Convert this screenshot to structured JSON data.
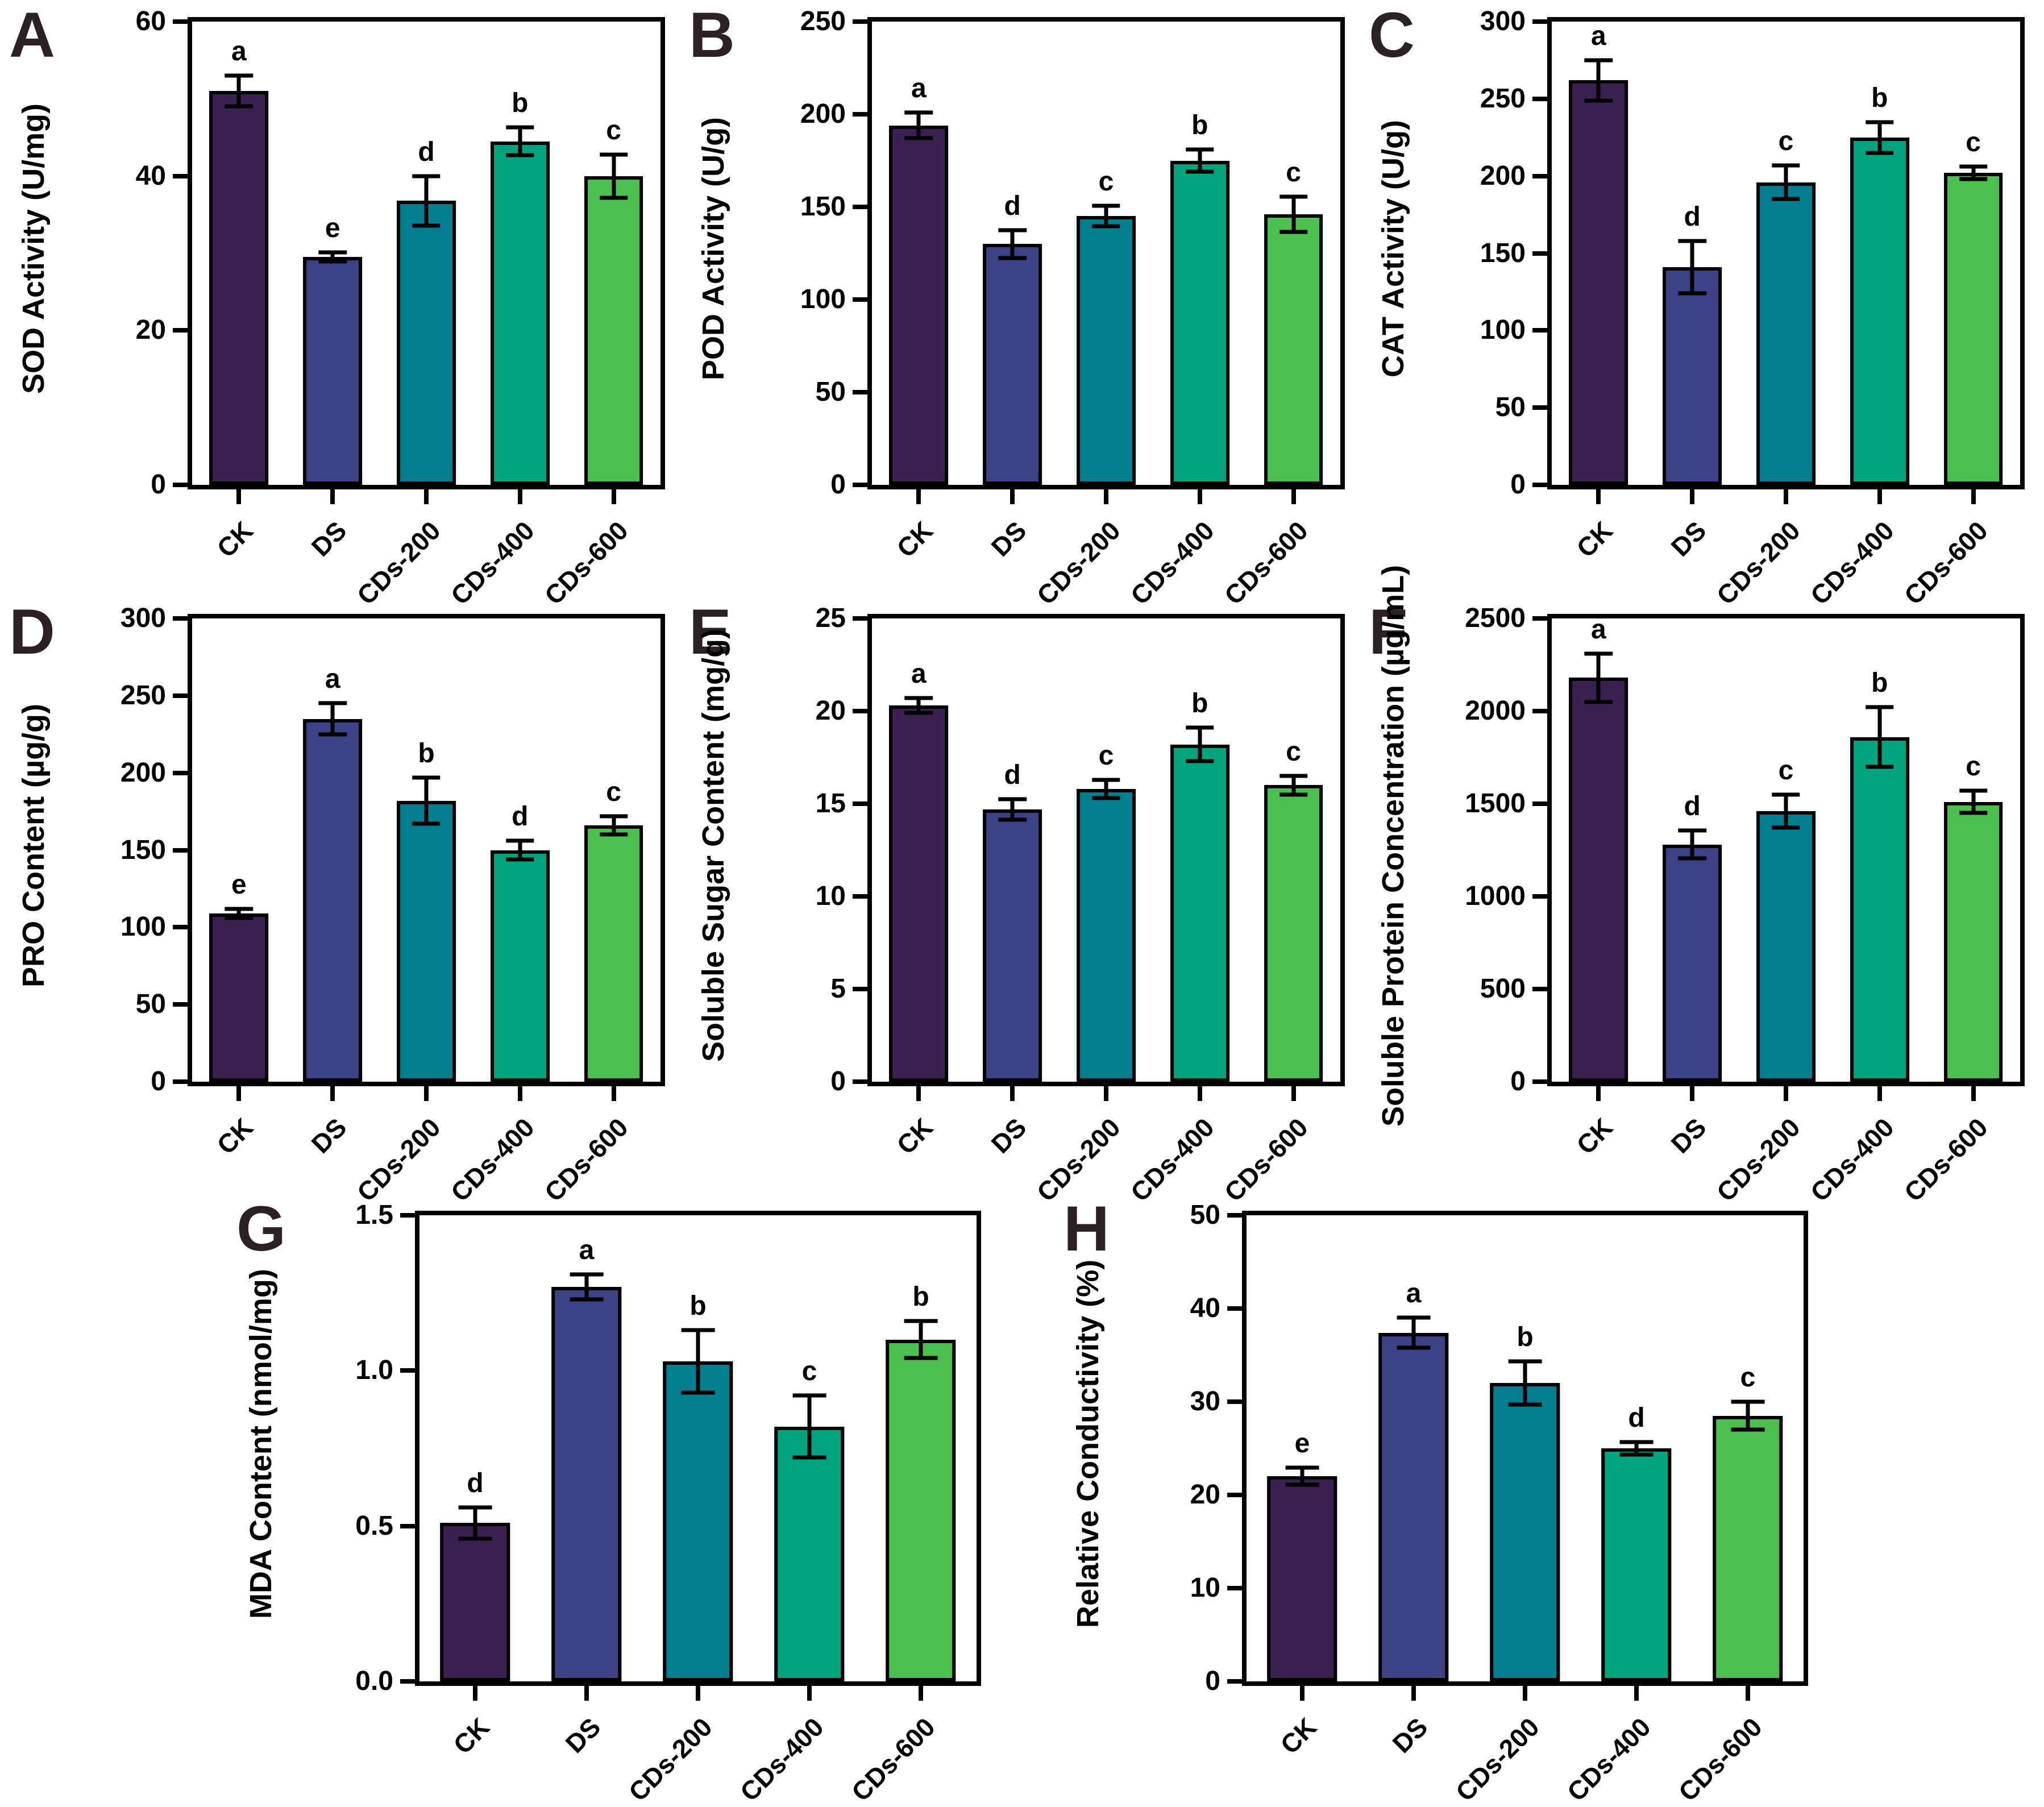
{
  "figure": {
    "bar_colors": [
      "#3a2151",
      "#3d4186",
      "#037d90",
      "#02a47d",
      "#4bc04f"
    ],
    "categories": [
      "CK",
      "DS",
      "CDs-200",
      "CDs-400",
      "CDs-600"
    ],
    "axis_color": "#000000",
    "panel_letter_color": "#2b2123",
    "background": "#ffffff"
  },
  "chart_data": [
    {
      "type": "bar",
      "panel": "A",
      "row": 0,
      "title": "",
      "xlabel": "",
      "ylabel": "SOD Activity (U/mg)",
      "ylim": [
        0,
        60
      ],
      "yticks": [
        0,
        20,
        40,
        60
      ],
      "ytick_labels": [
        "0",
        "20",
        "40",
        "60"
      ],
      "categories": [
        "CK",
        "DS",
        "CDs-200",
        "CDs-400",
        "CDs-600"
      ],
      "values": [
        51,
        29.5,
        36.8,
        44.5,
        40
      ],
      "errors": [
        2,
        0.6,
        3.2,
        1.8,
        2.8
      ],
      "sig_letters": [
        "a",
        "e",
        "d",
        "b",
        "c"
      ],
      "grid": false,
      "legend": "none"
    },
    {
      "type": "bar",
      "panel": "B",
      "row": 0,
      "title": "",
      "xlabel": "",
      "ylabel": "POD Activity (U/g)",
      "ylim": [
        0,
        250
      ],
      "yticks": [
        0,
        50,
        100,
        150,
        200,
        250
      ],
      "ytick_labels": [
        "0",
        "50",
        "100",
        "150",
        "200",
        "250"
      ],
      "categories": [
        "CK",
        "DS",
        "CDs-200",
        "CDs-400",
        "CDs-600"
      ],
      "values": [
        194,
        130,
        145,
        175,
        146
      ],
      "errors": [
        7,
        7.5,
        5.5,
        6,
        9.5
      ],
      "sig_letters": [
        "a",
        "d",
        "c",
        "b",
        "c"
      ],
      "grid": false,
      "legend": "none"
    },
    {
      "type": "bar",
      "panel": "C",
      "row": 0,
      "title": "",
      "xlabel": "",
      "ylabel": "CAT Activity (U/g)",
      "ylim": [
        0,
        300
      ],
      "yticks": [
        0,
        50,
        100,
        150,
        200,
        250,
        300
      ],
      "ytick_labels": [
        "0",
        "50",
        "100",
        "150",
        "200",
        "250",
        "300"
      ],
      "categories": [
        "CK",
        "DS",
        "CDs-200",
        "CDs-400",
        "CDs-600"
      ],
      "values": [
        262,
        141,
        196,
        225,
        202
      ],
      "errors": [
        13,
        17,
        11,
        10,
        4
      ],
      "sig_letters": [
        "a",
        "d",
        "c",
        "b",
        "c"
      ],
      "grid": false,
      "legend": "none"
    },
    {
      "type": "bar",
      "panel": "D",
      "row": 1,
      "title": "",
      "xlabel": "",
      "ylabel": "PRO Content (µg/g)",
      "ylim": [
        0,
        300
      ],
      "yticks": [
        0,
        50,
        100,
        150,
        200,
        250,
        300
      ],
      "ytick_labels": [
        "0",
        "50",
        "100",
        "150",
        "200",
        "250",
        "300"
      ],
      "categories": [
        "CK",
        "DS",
        "CDs-200",
        "CDs-400",
        "CDs-600"
      ],
      "values": [
        109,
        235,
        182,
        150,
        166
      ],
      "errors": [
        3,
        10,
        15,
        6,
        6
      ],
      "sig_letters": [
        "e",
        "a",
        "b",
        "d",
        "c"
      ],
      "grid": false,
      "legend": "none"
    },
    {
      "type": "bar",
      "panel": "E",
      "row": 1,
      "title": "",
      "xlabel": "",
      "ylabel": "Soluble Sugar Content (mg/g)",
      "ylim": [
        0,
        25
      ],
      "yticks": [
        0,
        5,
        10,
        15,
        20,
        25
      ],
      "ytick_labels": [
        "0",
        "5",
        "10",
        "15",
        "20",
        "25"
      ],
      "categories": [
        "CK",
        "DS",
        "CDs-200",
        "CDs-400",
        "CDs-600"
      ],
      "values": [
        20.3,
        14.7,
        15.8,
        18.2,
        16.0
      ],
      "errors": [
        0.4,
        0.55,
        0.5,
        0.9,
        0.5
      ],
      "sig_letters": [
        "a",
        "d",
        "c",
        "b",
        "c"
      ],
      "grid": false,
      "legend": "none"
    },
    {
      "type": "bar",
      "panel": "F",
      "row": 1,
      "title": "",
      "xlabel": "",
      "ylabel": "Soluble Protein Concentration (µg/mL)",
      "ylim": [
        0,
        2500
      ],
      "yticks": [
        0,
        500,
        1000,
        1500,
        2000,
        2500
      ],
      "ytick_labels": [
        "0",
        "500",
        "1000",
        "1500",
        "2000",
        "2500"
      ],
      "categories": [
        "CK",
        "DS",
        "CDs-200",
        "CDs-400",
        "CDs-600"
      ],
      "values": [
        2180,
        1280,
        1460,
        1860,
        1510
      ],
      "errors": [
        130,
        75,
        90,
        160,
        60
      ],
      "sig_letters": [
        "a",
        "d",
        "c",
        "b",
        "c"
      ],
      "grid": false,
      "legend": "none"
    },
    {
      "type": "bar",
      "panel": "G",
      "row": 2,
      "title": "",
      "xlabel": "",
      "ylabel": "MDA Content (nmol/mg)",
      "ylim": [
        0,
        1.5
      ],
      "yticks": [
        0,
        0.5,
        1.0,
        1.5
      ],
      "ytick_labels": [
        "0.0",
        "0.5",
        "1.0",
        "1.5"
      ],
      "categories": [
        "CK",
        "DS",
        "CDs-200",
        "CDs-400",
        "CDs-600"
      ],
      "values": [
        0.51,
        1.27,
        1.03,
        0.82,
        1.1
      ],
      "errors": [
        0.05,
        0.04,
        0.1,
        0.1,
        0.06
      ],
      "sig_letters": [
        "d",
        "a",
        "b",
        "c",
        "b"
      ],
      "grid": false,
      "legend": "none"
    },
    {
      "type": "bar",
      "panel": "H",
      "row": 2,
      "title": "",
      "xlabel": "",
      "ylabel": "Relative Conductivity (%)",
      "ylim": [
        0,
        50
      ],
      "yticks": [
        0,
        10,
        20,
        30,
        40,
        50
      ],
      "ytick_labels": [
        "0",
        "10",
        "20",
        "30",
        "40",
        "50"
      ],
      "categories": [
        "CK",
        "DS",
        "CDs-200",
        "CDs-400",
        "CDs-600"
      ],
      "values": [
        22,
        37.4,
        32,
        25,
        28.5
      ],
      "errors": [
        0.9,
        1.6,
        2.3,
        0.7,
        1.5
      ],
      "sig_letters": [
        "e",
        "a",
        "b",
        "d",
        "c"
      ],
      "grid": false,
      "legend": "none"
    }
  ]
}
